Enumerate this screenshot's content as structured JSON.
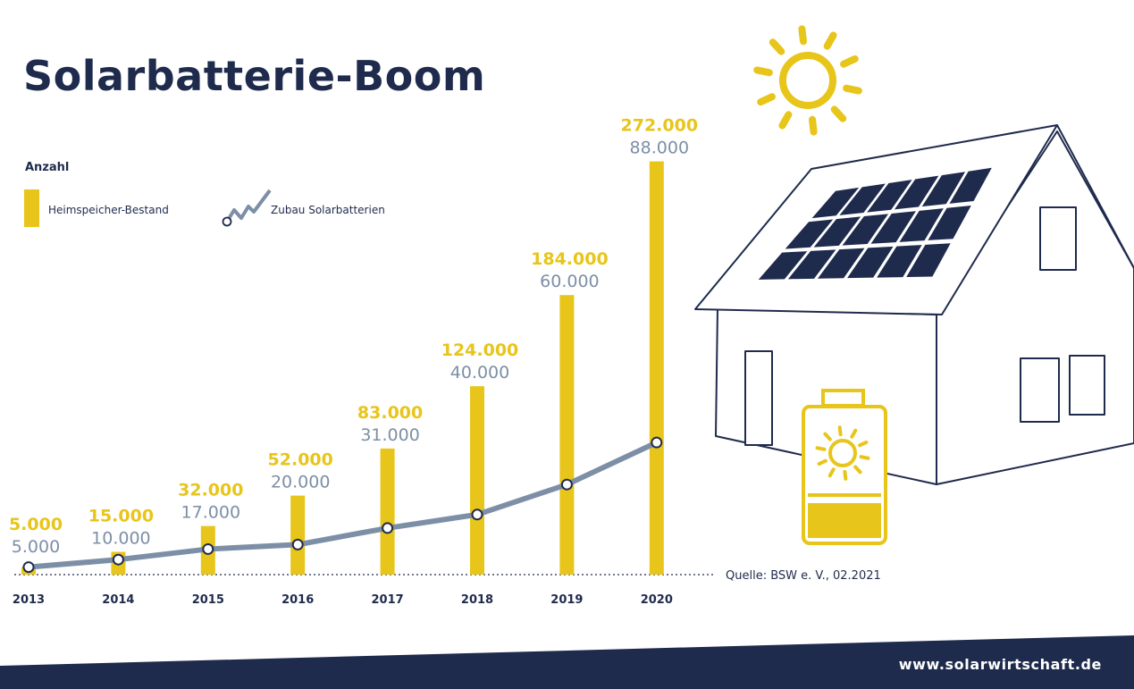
{
  "title": "Solarbatterie-Boom",
  "website": "www.solarwirtschaft.de",
  "colors": {
    "yellow": "#e8c51a",
    "steel": "#7d8fa6",
    "navy": "#1f2b4d",
    "panel": "#1f2b4d"
  },
  "chart_data": {
    "type": "bar",
    "title": "Solarbatterie-Boom",
    "ylabel": "Anzahl",
    "categories": [
      "2013",
      "2014",
      "2015",
      "2016",
      "2017",
      "2018",
      "2019",
      "2020"
    ],
    "series": [
      {
        "name": "Heimspeicher-Bestand",
        "type": "bar",
        "color": "#e8c51a",
        "values": [
          5000,
          15000,
          32000,
          52000,
          83000,
          124000,
          184000,
          272000
        ],
        "labels": [
          "5.000",
          "15.000",
          "32.000",
          "52.000",
          "83.000",
          "124.000",
          "184.000",
          "272.000"
        ]
      },
      {
        "name": "Zubau Solarbatterien",
        "type": "line",
        "color": "#7d8fa6",
        "values": [
          5000,
          10000,
          17000,
          20000,
          31000,
          40000,
          60000,
          88000
        ],
        "labels": [
          "5.000",
          "10.000",
          "17.000",
          "20.000",
          "31.000",
          "40.000",
          "60.000",
          "88.000"
        ]
      }
    ],
    "legend_position": "top-left",
    "grid": false,
    "source": "Quelle: BSW e. V., 02.2021"
  }
}
